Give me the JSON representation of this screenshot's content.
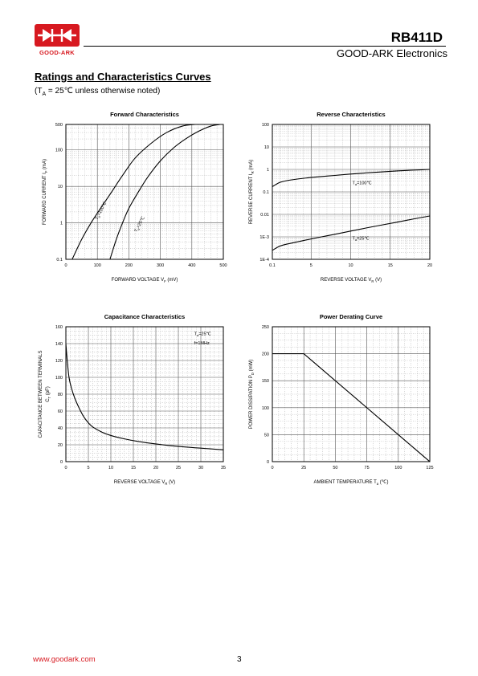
{
  "header": {
    "brand": "GOOD-ARK",
    "part_number": "RB411D",
    "company": "GOOD-ARK Electronics"
  },
  "section": {
    "title": "Ratings and Characteristics Curves",
    "condition_prefix": "(T",
    "condition_sub": "A",
    "condition_suffix": " = 25℃ unless otherwise noted)"
  },
  "footer": {
    "url": "www.goodark.com",
    "page": "3"
  },
  "colors": {
    "brand_red": "#d71920",
    "line": "#000000"
  },
  "chart_data": [
    {
      "id": "forward",
      "type": "line",
      "title": "Forward   Characteristics",
      "xlabel": "FORWARD VOLTAGE   V",
      "xlabel_sub": "F",
      "xlabel_unit": "(mV)",
      "ylabel": "FORWARD CURRENT   I",
      "ylabel_sub": "F",
      "ylabel_unit": "(mA)",
      "x_scale": "linear",
      "y_scale": "log",
      "xlim": [
        0,
        500
      ],
      "ylim": [
        0.1,
        500
      ],
      "x_ticks": [
        {
          "v": 0,
          "t": "0"
        },
        {
          "v": 100,
          "t": "100"
        },
        {
          "v": 200,
          "t": "200"
        },
        {
          "v": 300,
          "t": "300"
        },
        {
          "v": 400,
          "t": "400"
        },
        {
          "v": 500,
          "t": "500"
        }
      ],
      "y_ticks": [
        {
          "v": 0.1,
          "t": "0.1"
        },
        {
          "v": 1,
          "t": "1"
        },
        {
          "v": 10,
          "t": "10"
        },
        {
          "v": 100,
          "t": "100"
        },
        {
          "v": 500,
          "t": "500"
        }
      ],
      "grid": true,
      "series": [
        {
          "label": "T  =100℃",
          "label_sub": "a",
          "x": [
            20,
            50,
            80,
            110,
            140,
            180,
            220,
            270,
            320,
            370,
            410
          ],
          "y": [
            0.1,
            0.35,
            1,
            2.5,
            6,
            20,
            60,
            150,
            300,
            450,
            500
          ]
        },
        {
          "label": "T  =25℃",
          "label_sub": "a",
          "x": [
            140,
            160,
            180,
            200,
            230,
            260,
            300,
            340,
            380,
            420,
            460,
            490
          ],
          "y": [
            0.1,
            0.35,
            1,
            2.5,
            7,
            18,
            50,
            110,
            200,
            320,
            450,
            500
          ]
        }
      ],
      "annotations": [
        {
          "text": "T  =100℃",
          "sub": "a",
          "x": 100,
          "y": 1.2,
          "rotate": -62
        },
        {
          "text": "T  =25℃",
          "sub": "a",
          "x": 225,
          "y": 0.55,
          "rotate": -62
        }
      ]
    },
    {
      "id": "reverse",
      "type": "line",
      "title": "Reverse    Characteristics",
      "xlabel": "REVERSE VOLTAGE   V",
      "xlabel_sub": "R",
      "xlabel_unit": "(V)",
      "ylabel": "REVERSE CURRENT   I",
      "ylabel_sub": "R",
      "ylabel_unit": "(mA)",
      "x_scale": "linear",
      "y_scale": "log",
      "xlim": [
        0.1,
        20
      ],
      "ylim": [
        0.0001,
        100
      ],
      "x_ticks": [
        {
          "v": 0.1,
          "t": "0.1"
        },
        {
          "v": 5,
          "t": "5"
        },
        {
          "v": 10,
          "t": "10"
        },
        {
          "v": 15,
          "t": "15"
        },
        {
          "v": 20,
          "t": "20"
        }
      ],
      "y_ticks": [
        {
          "v": 0.0001,
          "t": "1E-4"
        },
        {
          "v": 0.001,
          "t": "1E-3"
        },
        {
          "v": 0.01,
          "t": "0.01"
        },
        {
          "v": 0.1,
          "t": "0.1"
        },
        {
          "v": 1,
          "t": "1"
        },
        {
          "v": 10,
          "t": "10"
        },
        {
          "v": 100,
          "t": "100"
        }
      ],
      "grid": true,
      "series": [
        {
          "label": "T  =100℃",
          "label_sub": "a",
          "x": [
            0.1,
            1,
            2,
            4,
            6,
            8,
            10,
            12,
            14,
            16,
            18,
            20
          ],
          "y": [
            0.17,
            0.26,
            0.32,
            0.4,
            0.47,
            0.54,
            0.62,
            0.7,
            0.78,
            0.86,
            0.93,
            1.0
          ]
        },
        {
          "label": "T  =25℃",
          "label_sub": "a",
          "x": [
            0.1,
            1,
            2,
            4,
            6,
            8,
            10,
            12,
            14,
            16,
            18,
            20
          ],
          "y": [
            0.00025,
            0.00038,
            0.00048,
            0.00068,
            0.00095,
            0.0013,
            0.0018,
            0.0025,
            0.0034,
            0.0046,
            0.0063,
            0.0085
          ]
        }
      ],
      "annotations": [
        {
          "text": "T  =100℃",
          "sub": "a",
          "x": 10.2,
          "y": 0.22,
          "rotate": 0
        },
        {
          "text": "T  =25℃",
          "sub": "a",
          "x": 10.2,
          "y": 0.00075,
          "rotate": 0
        }
      ]
    },
    {
      "id": "capacitance",
      "type": "line",
      "title": "Capacitance Characteristics",
      "xlabel": "REVERSE VOLTAGE   V",
      "xlabel_sub": "R",
      "xlabel_unit": "(V)",
      "ylabel": "CAPACITANCE BETWEEN TERMINALS",
      "ylabel2": "C",
      "ylabel2_sub": "T",
      "ylabel2_unit": "(pF)",
      "x_scale": "linear",
      "y_scale": "linear",
      "xlim": [
        0,
        35
      ],
      "ylim": [
        0,
        160
      ],
      "x_ticks": [
        {
          "v": 0,
          "t": "0"
        },
        {
          "v": 5,
          "t": "5"
        },
        {
          "v": 10,
          "t": "10"
        },
        {
          "v": 15,
          "t": "15"
        },
        {
          "v": 20,
          "t": "20"
        },
        {
          "v": 25,
          "t": "25"
        },
        {
          "v": 30,
          "t": "30"
        },
        {
          "v": 35,
          "t": "35"
        }
      ],
      "y_ticks": [
        {
          "v": 0,
          "t": "0"
        },
        {
          "v": 20,
          "t": "20"
        },
        {
          "v": 40,
          "t": "40"
        },
        {
          "v": 60,
          "t": "60"
        },
        {
          "v": 80,
          "t": "80"
        },
        {
          "v": 100,
          "t": "100"
        },
        {
          "v": 120,
          "t": "120"
        },
        {
          "v": 140,
          "t": "140"
        },
        {
          "v": 160,
          "t": "160"
        }
      ],
      "grid": true,
      "series": [
        {
          "label": "",
          "x": [
            0,
            0.3,
            0.7,
            1.2,
            2,
            3,
            4,
            5,
            6,
            8,
            10,
            13,
            16,
            20,
            25,
            30,
            35
          ],
          "y": [
            140,
            120,
            100,
            88,
            75,
            63,
            53,
            46,
            41,
            35,
            31,
            27,
            24,
            21,
            18,
            16,
            14
          ]
        }
      ],
      "annotations": [
        {
          "text": "T  =25℃",
          "sub": "a",
          "x": 28.5,
          "y": 150,
          "rotate": 0
        },
        {
          "text": "f=1MHz",
          "sub": "",
          "x": 28.5,
          "y": 139,
          "rotate": 0
        }
      ]
    },
    {
      "id": "derating",
      "type": "line",
      "title": "Power Derating Curve",
      "xlabel": "AMBIENT TEMPERATURE   T",
      "xlabel_sub": "a",
      "xlabel_unit": "(℃)",
      "ylabel": "POWER DISSIPATION   P",
      "ylabel_sub": "D",
      "ylabel_unit": "(mW)",
      "x_scale": "linear",
      "y_scale": "linear",
      "xlim": [
        0,
        125
      ],
      "ylim": [
        0,
        250
      ],
      "x_ticks": [
        {
          "v": 0,
          "t": "0"
        },
        {
          "v": 25,
          "t": "25"
        },
        {
          "v": 50,
          "t": "50"
        },
        {
          "v": 75,
          "t": "75"
        },
        {
          "v": 100,
          "t": "100"
        },
        {
          "v": 125,
          "t": "125"
        }
      ],
      "y_ticks": [
        {
          "v": 0,
          "t": "0"
        },
        {
          "v": 50,
          "t": "50"
        },
        {
          "v": 100,
          "t": "100"
        },
        {
          "v": 150,
          "t": "150"
        },
        {
          "v": 200,
          "t": "200"
        },
        {
          "v": 250,
          "t": "250"
        }
      ],
      "grid": true,
      "series": [
        {
          "label": "",
          "x": [
            0,
            25,
            125
          ],
          "y": [
            200,
            200,
            0
          ]
        }
      ],
      "annotations": []
    }
  ]
}
